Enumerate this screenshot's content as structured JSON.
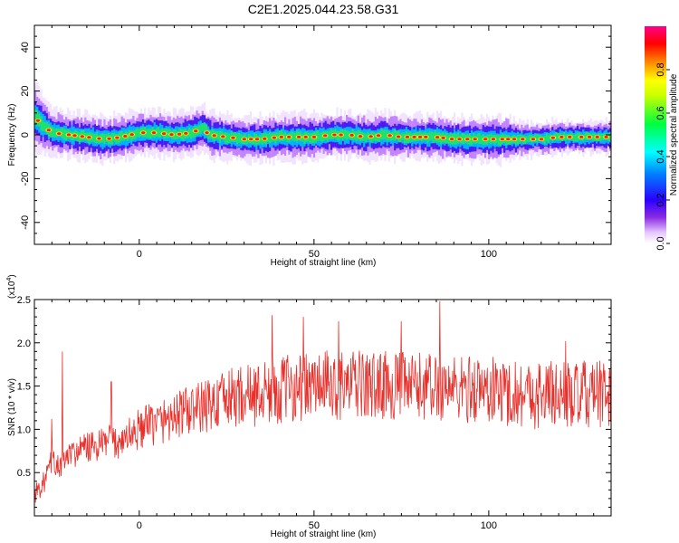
{
  "title": "C2E1.2025.044.23.58.G31",
  "colors": {
    "snr_line": "#e8302b",
    "axis": "#000000",
    "background": "#ffffff"
  },
  "chart_data": [
    {
      "type": "heatmap",
      "xlabel": "Height of straight line (km)",
      "ylabel": "Frequency (Hz)",
      "xlim": [
        -30,
        135
      ],
      "ylim": [
        -50,
        50
      ],
      "xticks": [
        0,
        50,
        100
      ],
      "yticks": [
        40,
        20,
        0,
        -20,
        -40
      ],
      "ytick_labels": [
        "40",
        "20",
        "0",
        "-20",
        "-40"
      ],
      "colorbar": {
        "label": "Normalized spectral amplitude",
        "range": [
          0,
          1
        ],
        "ticks": [
          0.0,
          0.2,
          0.4,
          0.6,
          0.8
        ],
        "tick_labels": [
          "0.0",
          "0.2",
          "0.4",
          "0.6",
          "0.8"
        ],
        "colormap": "rainbow (white-violet-blue-cyan-green-yellow-red-magenta)"
      },
      "ridge": {
        "x": [
          -30,
          -28,
          -25,
          -20,
          -15,
          -10,
          -5,
          0,
          5,
          10,
          15,
          18,
          20,
          25,
          30,
          35,
          40,
          45,
          50,
          55,
          60,
          65,
          70,
          75,
          80,
          85,
          90,
          95,
          100,
          105,
          110,
          115,
          120,
          125,
          130,
          135
        ],
        "freq_hz": [
          8,
          5,
          1,
          0,
          -1,
          -2,
          -1,
          1,
          1,
          0,
          1,
          3,
          0,
          -1,
          -2,
          -2,
          -1,
          -1,
          -1,
          0,
          0,
          -1,
          0,
          -1,
          -1,
          -1,
          -2,
          -2,
          -2,
          -2,
          -2,
          -2,
          -1,
          -1,
          -1,
          -1
        ],
        "width_hz": [
          6,
          5,
          4,
          4,
          4,
          4,
          4,
          4,
          4,
          4,
          4,
          4,
          4,
          4,
          4,
          4,
          4,
          4,
          4,
          4,
          4,
          4,
          4,
          4,
          4,
          4,
          4,
          4,
          4,
          4,
          3,
          3,
          3,
          3,
          3,
          3
        ]
      }
    },
    {
      "type": "line",
      "xlabel": "Height of straight line (km)",
      "ylabel": "SNR (10 * v/v)",
      "y_multiplier_label": "(x10",
      "y_multiplier_exp": "4",
      "y_multiplier_close": ")",
      "xlim": [
        -30,
        135
      ],
      "ylim": [
        0,
        25000
      ],
      "xticks": [
        0,
        50,
        100
      ],
      "yticks": [
        0.5,
        1.0,
        1.5,
        2.0,
        2.5
      ],
      "ytick_labels": [
        "0.5",
        "1.0",
        "1.5",
        "2.0",
        "2.5"
      ],
      "series": [
        {
          "x": [
            -30,
            -27,
            -25,
            -23,
            -20,
            -17,
            -15,
            -12,
            -10,
            -7,
            -5,
            -2,
            0,
            3,
            5,
            8,
            10,
            13,
            15,
            18,
            20,
            23,
            25,
            28,
            30,
            33,
            35,
            38,
            40,
            43,
            45,
            48,
            50,
            53,
            55,
            58,
            60,
            63,
            65,
            68,
            70,
            73,
            75,
            78,
            80,
            83,
            85,
            88,
            90,
            93,
            95,
            98,
            100,
            103,
            105,
            108,
            110,
            113,
            115,
            118,
            120,
            123,
            125,
            128,
            130,
            133,
            135
          ],
          "y_x1e4": [
            0.25,
            0.4,
            0.65,
            0.55,
            0.7,
            0.75,
            0.8,
            0.78,
            0.85,
            0.85,
            0.88,
            0.95,
            1.0,
            1.05,
            1.08,
            1.12,
            1.15,
            1.2,
            1.22,
            1.25,
            1.28,
            1.32,
            1.35,
            1.38,
            1.4,
            1.4,
            1.42,
            1.45,
            1.45,
            1.48,
            1.5,
            1.48,
            1.5,
            1.52,
            1.5,
            1.5,
            1.5,
            1.52,
            1.5,
            1.5,
            1.52,
            1.5,
            1.5,
            1.48,
            1.5,
            1.5,
            1.48,
            1.5,
            1.48,
            1.45,
            1.48,
            1.45,
            1.45,
            1.45,
            1.42,
            1.42,
            1.42,
            1.4,
            1.4,
            1.42,
            1.4,
            1.4,
            1.38,
            1.4,
            1.4,
            1.4,
            1.4
          ],
          "spikes": [
            {
              "x": -22,
              "y_x1e4": 1.9
            },
            {
              "x": -25,
              "y_x1e4": 1.12
            },
            {
              "x": -8,
              "y_x1e4": 1.55
            },
            {
              "x": 38,
              "y_x1e4": 2.32
            },
            {
              "x": 47,
              "y_x1e4": 2.3
            },
            {
              "x": 57,
              "y_x1e4": 2.25
            },
            {
              "x": 75,
              "y_x1e4": 2.25
            },
            {
              "x": 86,
              "y_x1e4": 2.48
            },
            {
              "x": 122,
              "y_x1e4": 2.02
            },
            {
              "x": 135,
              "y_x1e4": 1.88
            }
          ]
        }
      ]
    }
  ]
}
